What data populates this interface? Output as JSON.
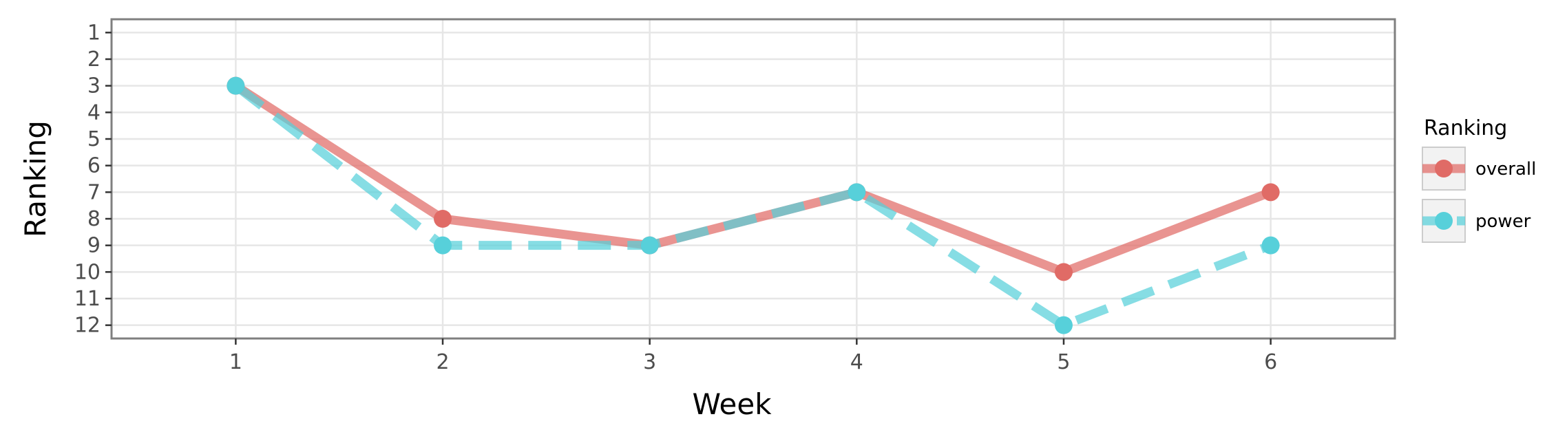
{
  "chart_data": {
    "type": "line",
    "xlabel": "Week",
    "ylabel": "Ranking",
    "x": [
      1,
      2,
      3,
      4,
      5,
      6
    ],
    "x_ticks": [
      "1",
      "2",
      "3",
      "4",
      "5",
      "6"
    ],
    "xlim": [
      0.4,
      6.6
    ],
    "y_ticks": [
      "1",
      "2",
      "3",
      "4",
      "5",
      "6",
      "7",
      "8",
      "9",
      "10",
      "11",
      "12"
    ],
    "ylim": [
      12.5,
      0.5
    ],
    "y_reversed": true,
    "grid": true,
    "legend": {
      "title": "Ranking",
      "position": "right"
    },
    "series": [
      {
        "name": "overall",
        "values": [
          3,
          8,
          9,
          7,
          10,
          7
        ],
        "color": "#e06b66",
        "line_style": "solid"
      },
      {
        "name": "power",
        "values": [
          3,
          9,
          9,
          7,
          12,
          9
        ],
        "color": "#57d0da",
        "line_style": "dashed"
      }
    ]
  }
}
